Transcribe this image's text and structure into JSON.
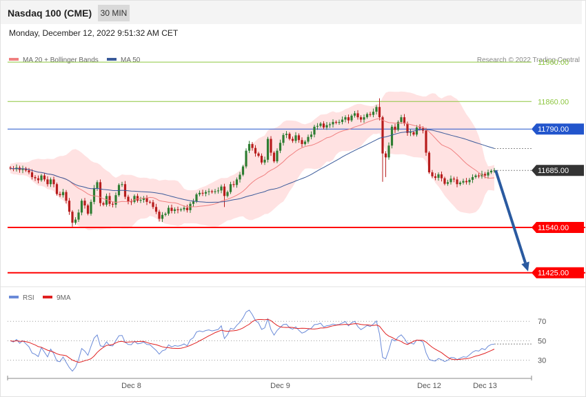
{
  "header": {
    "title": "Nasdaq 100 (CME)",
    "timeframe": "30 MIN",
    "datetime": "Monday, December 12, 2022 9:51:32 AM CET"
  },
  "legend": {
    "ma20": "MA 20 + Bollinger Bands",
    "ma50": "MA 50",
    "rsi": "RSI",
    "ma9": "9MA",
    "copyright": "Research © 2022 Trading Central"
  },
  "colors": {
    "green_level": "#8dc63f",
    "resistance_blue": "#2255cc",
    "support_red": "#ff0000",
    "candle_up": "#2e7d32",
    "candle_down": "#b71c1c",
    "bollinger_fill": "#ffd6d6",
    "ma20": "#f08080",
    "ma50": "#3a5a9a",
    "rsi": "#6a8ad8",
    "rsi_ma": "#e02020",
    "arrow": "#2a5aa0",
    "current_price_bg": "#333333"
  },
  "chart_data": [
    {
      "type": "candlestick",
      "title": "Nasdaq 100 (CME)",
      "ylim": [
        11400,
        11990
      ],
      "x_tick_labels": [
        "Dec 8",
        "Dec 9",
        "Dec 12",
        "Dec 13"
      ],
      "levels": [
        {
          "label": "11960.00",
          "value": 11960,
          "kind": "target"
        },
        {
          "label": "11860.00",
          "value": 11860,
          "kind": "target"
        },
        {
          "label": "11790.00",
          "value": 11790,
          "kind": "resistance"
        },
        {
          "label": "11685.00",
          "value": 11685,
          "kind": "current"
        },
        {
          "label": "11540.00",
          "value": 11540,
          "kind": "support"
        },
        {
          "label": "11425.00",
          "value": 11425,
          "kind": "support"
        }
      ],
      "series": [
        {
          "name": "Price",
          "close": [
            11690,
            11688,
            11692,
            11686,
            11690,
            11685,
            11680,
            11668,
            11665,
            11660,
            11672,
            11662,
            11650,
            11662,
            11650,
            11625,
            11622,
            11630,
            11608,
            11580,
            11552,
            11560,
            11578,
            11608,
            11596,
            11575,
            11605,
            11640,
            11655,
            11602,
            11598,
            11620,
            11600,
            11598,
            11622,
            11648,
            11650,
            11618,
            11606,
            11605,
            11620,
            11608,
            11610,
            11615,
            11605,
            11604,
            11592,
            11580,
            11562,
            11572,
            11575,
            11590,
            11582,
            11586,
            11584,
            11586,
            11590,
            11584,
            11600,
            11606,
            11624,
            11628,
            11626,
            11630,
            11632,
            11630,
            11632,
            11634,
            11644,
            11620,
            11630,
            11650,
            11648,
            11662,
            11674,
            11695,
            11735,
            11752,
            11742,
            11728,
            11722,
            11705,
            11712,
            11765,
            11730,
            11708,
            11735,
            11755,
            11775,
            11778,
            11765,
            11760,
            11774,
            11762,
            11752,
            11758,
            11770,
            11776,
            11796,
            11798,
            11804,
            11794,
            11800,
            11802,
            11808,
            11806,
            11808,
            11814,
            11820,
            11812,
            11824,
            11830,
            11820,
            11814,
            11820,
            11828,
            11826,
            11834,
            11846,
            11820,
            11728,
            11718,
            11748,
            11796,
            11788,
            11808,
            11820,
            11804,
            11780,
            11782,
            11776,
            11794,
            11792,
            11786,
            11730,
            11680,
            11670,
            11666,
            11675,
            11665,
            11651,
            11655,
            11664,
            11662,
            11650,
            11654,
            11658,
            11655,
            11661,
            11668,
            11672,
            11670,
            11676,
            11672,
            11680,
            11684,
            11685
          ]
        },
        {
          "name": "MA 20"
        },
        {
          "name": "MA 50"
        }
      ]
    },
    {
      "type": "line",
      "title": "",
      "ylim": [
        12,
        90
      ],
      "y_tick_labels": [
        "70",
        "50",
        "30"
      ],
      "reference_levels": [
        70,
        50,
        30
      ],
      "series": [
        {
          "name": "RSI"
        },
        {
          "name": "9MA"
        }
      ]
    }
  ]
}
